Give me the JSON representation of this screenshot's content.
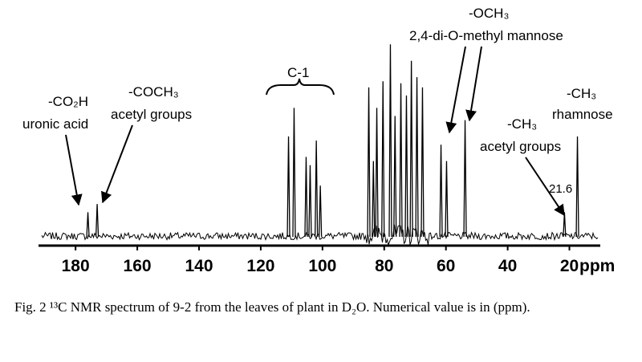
{
  "chart_data": {
    "type": "spectrum",
    "xlim": [
      192,
      10
    ],
    "xticks": [
      180,
      160,
      140,
      120,
      100,
      80,
      60,
      40,
      20
    ],
    "xlabel": "ppm",
    "ylim": [
      0,
      100
    ],
    "color": "#000000",
    "peaks": {
      "x": [
        176,
        173,
        111,
        109.2,
        105.3,
        104,
        102,
        100.7,
        85,
        83.5,
        82.4,
        80.4,
        78,
        76.5,
        74.6,
        72.8,
        71.2,
        69.4,
        67.6,
        61.6,
        59.8,
        53.8,
        21.6,
        17.4
      ],
      "values": [
        12,
        16,
        49,
        63,
        39,
        35,
        47,
        25,
        73,
        37,
        63,
        76,
        94,
        59,
        75,
        69,
        86,
        78,
        73,
        45,
        37,
        57,
        12,
        49
      ]
    },
    "annotations": [
      "-CO₂H",
      "uronic acid",
      "-COCH₃",
      "acetyl groups",
      "C-1",
      "-OCH₃",
      "2,4-di-O-methyl mannose",
      "-CH₃",
      "acetyl groups",
      "-CH₃",
      "rhamnose"
    ],
    "marked_shift": 21.6
  },
  "caption": "Fig. 2 ¹³C NMR spectrum of 9-2 from the leaves of plant in D₂O. Numerical value is in (ppm)."
}
